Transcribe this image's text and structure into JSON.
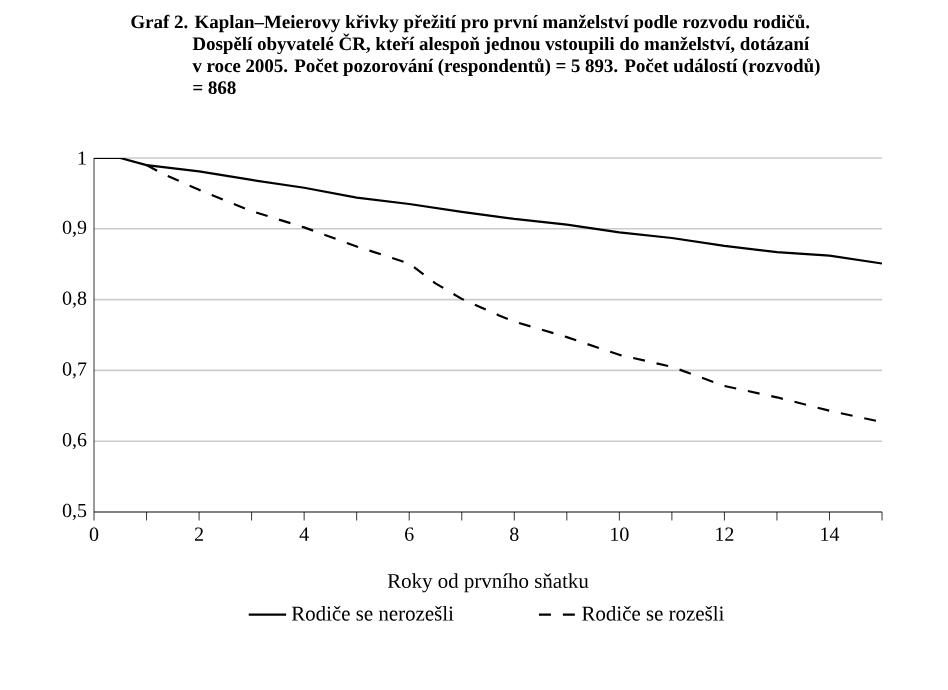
{
  "chart_data": {
    "type": "line",
    "title": "Graf 2. Kaplan–Meierovy křivky přežití pro první manželství podle rozvodu rodičů. Dospělí obyvatelé ČR, kteří alespoň jednou vstoupili do manželství, dotázaní v roce 2005. Počet pozorování (respondentů) = 5 893. Počet událostí (rozvodů) = 868",
    "xlabel": "Roky od prvního sňatku",
    "xlim": [
      0,
      15
    ],
    "xticks": [
      0,
      {
        "value": 1,
        "label": null
      },
      2,
      {
        "value": 3,
        "label": null
      },
      4,
      {
        "value": 5,
        "label": null
      },
      6,
      {
        "value": 7,
        "label": null
      },
      8,
      {
        "value": 9,
        "label": null
      },
      10,
      {
        "value": 11,
        "label": null
      },
      12,
      {
        "value": 13,
        "label": null
      },
      14,
      {
        "value": 15,
        "label": null
      }
    ],
    "ylim": [
      0.5,
      1
    ],
    "yticks": [
      {
        "value": 0.5,
        "label": "0,5"
      },
      {
        "value": 0.6,
        "label": "0,6"
      },
      {
        "value": 0.7,
        "label": "0,7"
      },
      {
        "value": 0.8,
        "label": "0,8"
      },
      {
        "value": 0.9,
        "label": "0,9"
      },
      1
    ],
    "grid": "y",
    "legend": "bottom",
    "marker": "none",
    "series": [
      {
        "name": "Rodiče se nerozešli",
        "color": "#000000",
        "line_style": "solid",
        "x": [
          0,
          0.5,
          1,
          2,
          3,
          4,
          5,
          6,
          7,
          8,
          9,
          10,
          11,
          12,
          13,
          14,
          15
        ],
        "values": [
          1.0,
          1.0,
          0.99,
          0.981,
          0.969,
          0.958,
          0.944,
          0.935,
          0.924,
          0.914,
          0.906,
          0.895,
          0.887,
          0.876,
          0.867,
          0.862,
          0.851
        ]
      },
      {
        "name": "Rodiče se rozešli",
        "color": "#000000",
        "line_style": "dashed",
        "x": [
          1,
          1.3,
          2,
          3,
          4,
          5,
          6,
          6.5,
          7,
          7.7,
          8,
          9,
          10,
          11,
          12,
          13,
          14,
          15
        ],
        "values": [
          0.99,
          0.978,
          0.955,
          0.925,
          0.902,
          0.875,
          0.851,
          0.823,
          0.801,
          0.778,
          0.769,
          0.747,
          0.722,
          0.705,
          0.678,
          0.662,
          0.643,
          0.627
        ]
      }
    ]
  }
}
